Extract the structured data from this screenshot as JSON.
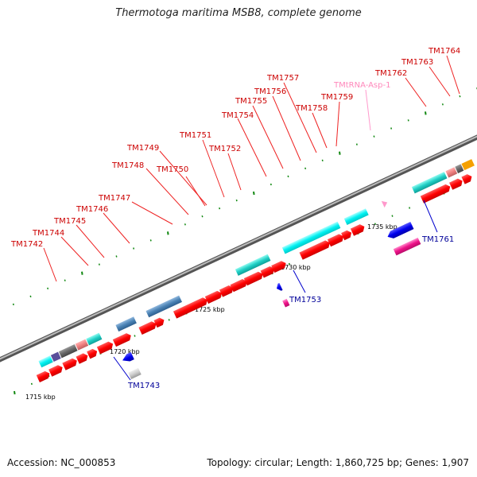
{
  "title": "Thermotoga maritima MSB8, complete genome",
  "footer": {
    "accession": "Accession: NC_000853",
    "summary": "Topology: circular; Length: 1,860,725 bp; Genes: 1,907"
  },
  "scale_labels": [
    "1715 kbp",
    "1720 kbp",
    "1725 kbp",
    "1730 kbp",
    "1735 kbp"
  ],
  "colors": {
    "forward_gene": "#ff0000",
    "reverse_gene": "#0000ee",
    "forward_label": "#cc0000",
    "reverse_label": "#000099",
    "trna_label": "#ff88bb",
    "backbone": "#888888"
  },
  "labels_forward": [
    "TM1742",
    "TM1744",
    "TM1745",
    "TM1746",
    "TM1747",
    "TM1748",
    "TM1749",
    "TM1750",
    "TM1751",
    "TM1752",
    "TM1754",
    "TM1755",
    "TM1756",
    "TM1757",
    "TM1758",
    "TM1759",
    "TM1762",
    "TM1763",
    "TM1764"
  ],
  "label_trna": "TMtRNA-Asp-1",
  "labels_reverse": [
    "TM1743",
    "TM1753",
    "TM1761"
  ]
}
